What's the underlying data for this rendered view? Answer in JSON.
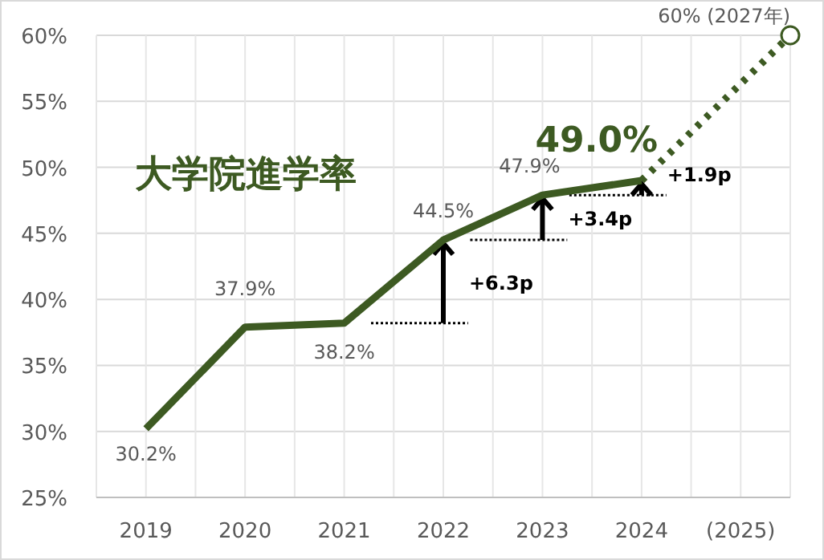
{
  "chart_data": {
    "type": "line",
    "title": "大学院進学率",
    "x": [
      2019,
      2020,
      2021,
      2022,
      2023,
      2024
    ],
    "series": [
      {
        "color": "#3d5a22",
        "values": [
          30.2,
          37.9,
          38.2,
          44.5,
          47.9,
          49.0
        ],
        "value_labels": [
          "30.2%",
          "37.9%",
          "38.2%",
          "44.5%",
          "47.9%",
          "49.0%"
        ]
      },
      {
        "color": "#3d5a22",
        "x": [
          2024,
          2025.5
        ],
        "values": [
          49.0,
          60
        ],
        "line_style": "dotted",
        "marker": "circle"
      }
    ],
    "xlim": [
      2018.5,
      2025.5
    ],
    "xticks": [
      {
        "value": 2018.5,
        "label": null
      },
      2019,
      {
        "value": 2019.5,
        "label": null
      },
      2020,
      {
        "value": 2020.5,
        "label": null
      },
      2021,
      {
        "value": 2021.5,
        "label": null
      },
      2022,
      {
        "value": 2022.5,
        "label": null
      },
      2023,
      {
        "value": 2023.5,
        "label": null
      },
      2024,
      {
        "value": 2024.5,
        "label": null
      },
      {
        "value": 2025,
        "label": "(2025)"
      },
      {
        "value": 2025.5,
        "label": null
      }
    ],
    "ylim": [
      25,
      60
    ],
    "yticks": [
      {
        "value": 25,
        "label": "25%"
      },
      {
        "value": 30,
        "label": "30%"
      },
      {
        "value": 35,
        "label": "35%"
      },
      {
        "value": 40,
        "label": "40%"
      },
      {
        "value": 45,
        "label": "45%"
      },
      {
        "value": 50,
        "label": "50%"
      },
      {
        "value": 55,
        "label": "55%"
      },
      {
        "value": 60,
        "label": "60%"
      }
    ],
    "grid": true,
    "annotations": [
      {
        "text": "60% (2027年)",
        "x": 2025.5,
        "y": 60
      },
      {
        "text": "+6.3p",
        "x": 2022,
        "y": 44.5
      },
      {
        "text": "+3.4p",
        "x": 2023,
        "y": 47.9
      },
      {
        "text": "+1.9p",
        "x": 2024,
        "y": 49.0
      }
    ]
  }
}
